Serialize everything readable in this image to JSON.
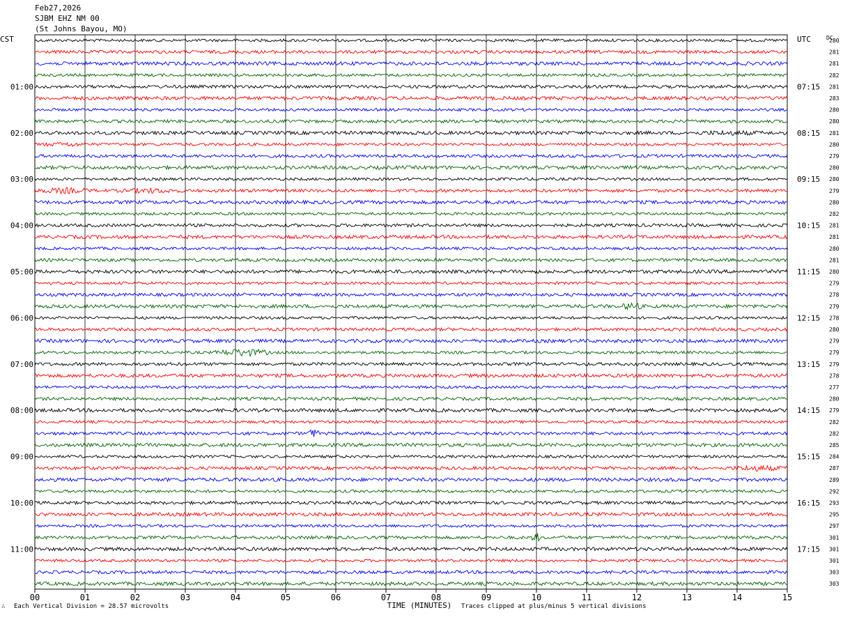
{
  "header": {
    "date": "Feb27,2026",
    "station": "SJBM EHZ NM 00",
    "location": "(St Johns Bayou, MO)"
  },
  "chart_data": {
    "type": "line",
    "subtype": "helicorder",
    "left_timezone": "CST",
    "right_timezone": "UTC",
    "dc_label": "DC",
    "xlabel": "TIME (MINUTES)",
    "x_ticks": [
      "00",
      "01",
      "02",
      "03",
      "04",
      "05",
      "06",
      "07",
      "08",
      "09",
      "10",
      "11",
      "12",
      "13",
      "14",
      "15"
    ],
    "xlim": [
      0,
      15
    ],
    "trace_colors": [
      "#000000",
      "#ff0000",
      "#0000ff",
      "#006400"
    ],
    "left_hour_labels": [
      "01:00",
      "02:00",
      "03:00",
      "04:00",
      "05:00",
      "06:00",
      "07:00",
      "08:00",
      "09:00",
      "10:00",
      "11:00"
    ],
    "right_hour_labels": [
      "07:15",
      "08:15",
      "09:15",
      "10:15",
      "11:15",
      "12:15",
      "13:15",
      "14:15",
      "15:15",
      "16:15",
      "17:15"
    ],
    "dc_offsets": [
      280,
      281,
      281,
      282,
      281,
      283,
      280,
      280,
      281,
      280,
      279,
      280,
      280,
      279,
      280,
      282,
      281,
      281,
      280,
      281,
      280,
      279,
      278,
      279,
      278,
      280,
      279,
      279,
      279,
      278,
      277,
      280,
      279,
      282,
      282,
      285,
      284,
      287,
      289,
      292,
      293,
      295,
      297,
      301,
      301,
      301,
      303,
      303
    ],
    "events": [
      {
        "trace": 8,
        "minute_start": 12.7,
        "minute_end": 15,
        "amplitude": 1.8
      },
      {
        "trace": 9,
        "minute_start": 0,
        "minute_end": 1.2,
        "amplitude": 1.7
      },
      {
        "trace": 13,
        "minute_start": 0,
        "minute_end": 1.2,
        "amplitude": 2.2
      },
      {
        "trace": 13,
        "minute_start": 1.6,
        "minute_end": 3.0,
        "amplitude": 2.0
      },
      {
        "trace": 23,
        "minute_start": 11.7,
        "minute_end": 12.1,
        "amplitude": 3.0
      },
      {
        "trace": 27,
        "minute_start": 3.6,
        "minute_end": 4.7,
        "amplitude": 2.8
      },
      {
        "trace": 34,
        "minute_start": 5.45,
        "minute_end": 5.65,
        "amplitude": 3.5
      },
      {
        "trace": 37,
        "minute_start": 13.8,
        "minute_end": 15,
        "amplitude": 2.2
      },
      {
        "trace": 43,
        "minute_start": 9.9,
        "minute_end": 10.1,
        "amplitude": 3.2
      }
    ]
  },
  "footer": {
    "scale_text": "Each Vertical Division =   28.57 microvolts",
    "clip_text": "Traces clipped at plus/minus 5 vertical divisions",
    "mark": "∴"
  }
}
